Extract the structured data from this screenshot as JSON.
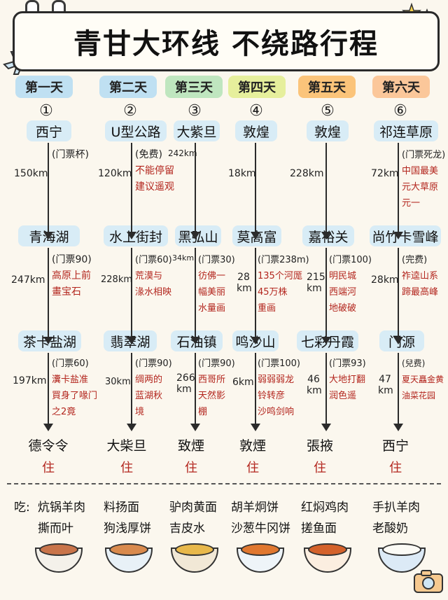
{
  "title": "青甘大环线 不绕路行程",
  "colors": {
    "tab_blue": "#bfe0f2",
    "tab_green": "#bfe6bf",
    "tab_yellow": "#e6ef9c",
    "tab_orange": "#fbc47a",
    "tab_peach": "#fbc79a",
    "pill": "#d8ecf6",
    "red_text": "#b3261e"
  },
  "days": [
    {
      "label": "第一天",
      "num": "①"
    },
    {
      "label": "第二天",
      "num": "②"
    },
    {
      "label": "第三天",
      "num": "③"
    },
    {
      "label": "第四天",
      "num": "④"
    },
    {
      "label": "第五天",
      "num": "⑤"
    },
    {
      "label": "第六天",
      "num": "⑥"
    }
  ],
  "route": {
    "row1": [
      "西宁",
      "U型公路",
      "大紫旦",
      "敦煌",
      "敦煌",
      "祁连草原"
    ],
    "row2": [
      "青海湖",
      "水上街封",
      "黑弘山",
      "莫高富",
      "嘉裕关",
      "尚竹卡雪峰"
    ],
    "row3": [
      "茶卡盐湖",
      "翡翠湖",
      "石油镇",
      "鸣沙山",
      "七彩丹霞",
      "门源"
    ]
  },
  "seg1": {
    "d1": {
      "dist": "150km",
      "ticket": "(门票杯)"
    },
    "d2": {
      "dist": "120km",
      "ticket": "(免费)",
      "note1": "不能停留",
      "note2": "建议遥观"
    },
    "d3": {
      "dist": "242km"
    },
    "d4": {
      "dist": "18km"
    },
    "d5": {
      "dist": "228km"
    },
    "d6": {
      "dist": "72km",
      "ticket": "(门票死龙)",
      "note1": "中国最美",
      "note2": "元大草原",
      "note3": "元一"
    }
  },
  "seg2": {
    "d1": {
      "dist": "247km",
      "ticket": "(门票90)",
      "note1": "高原上前",
      "note2": "畫宝石"
    },
    "d2": {
      "dist": "228km",
      "ticket": "(门票60)",
      "note1": "荒漠与",
      "note2": "湪水相映"
    },
    "d3": {
      "dist": "34km",
      "ticket": "(门票30)",
      "note1": "彷佛一",
      "note2": "幅美丽",
      "note3": "水量画"
    },
    "d4": {
      "dist": "28 km",
      "ticket": "(门票238m)",
      "note1": "135个河厖",
      "note2": "45万株",
      "note3": "重画"
    },
    "d5": {
      "dist": "215 km",
      "ticket": "(门票100)",
      "note1": "明民城",
      "note2": "西端河",
      "note3": "地破破"
    },
    "d6": {
      "dist": "28km",
      "ticket": "(完费)",
      "note1": "祚逵山系",
      "note2": "蹄最高峰"
    }
  },
  "seg3": {
    "d1": {
      "dist": "197km",
      "ticket": "(门票60)",
      "note1": "瀵卡盐准",
      "note2": "買身了喙门",
      "note3": "之2竟"
    },
    "d2": {
      "dist": "30km",
      "ticket": "(门票90)",
      "note1": "绸两的",
      "note2": "蓝湖秋",
      "note3": "境"
    },
    "d3": {
      "dist": "266 km",
      "ticket": "(门票90)",
      "note1": "西哥所",
      "note2": "天然影",
      "note3": "棚"
    },
    "d4": {
      "dist": "6km",
      "ticket": "(门票100)",
      "note1": "弱弱弱龙",
      "note2": "铃转彦",
      "note3": "沙鸣剑响"
    },
    "d5": {
      "dist": "46 km",
      "ticket": "(门票93)",
      "note1": "大地打翻",
      "note2": "润色遥"
    },
    "d6": {
      "dist": "47 km",
      "ticket": "(兒费)",
      "note1": "夏天矗金黄",
      "note2": "油菜花园"
    }
  },
  "stay": {
    "places": [
      "德令令",
      "大柴旦",
      "致煙",
      "敦煙",
      "張掖",
      "西宁"
    ],
    "label": "住"
  },
  "food": {
    "prefix": "吃:",
    "items": [
      {
        "line1": "炕锅羊肉",
        "line2": "撕而叶"
      },
      {
        "line1": "料扬面",
        "line2": "狗浅厚饼"
      },
      {
        "line1": "驴肉黄面",
        "line2": "吉皮水"
      },
      {
        "line1": "胡羊炯饼",
        "line2": "沙葱牛冈饼"
      },
      {
        "line1": "红焖鸡肉",
        "line2": "搓鱼面"
      },
      {
        "line1": "手扒羊肉",
        "line2": "老酸奶"
      }
    ]
  }
}
